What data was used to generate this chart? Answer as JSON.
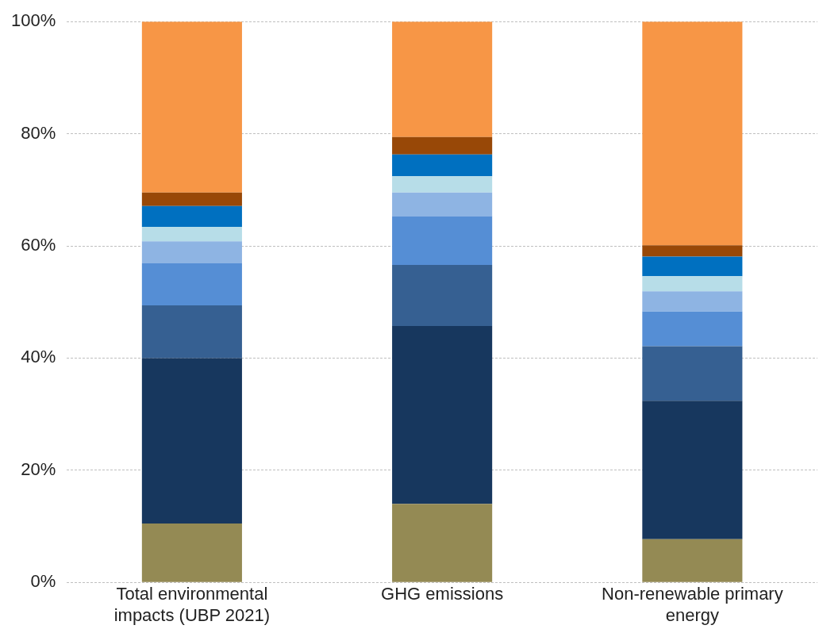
{
  "chart_data": {
    "type": "bar",
    "stacked": true,
    "categories": [
      "Total environmental impacts (UBP 2021)",
      "GHG emissions",
      "Non-renewable primary energy"
    ],
    "series": [
      {
        "color": "#948a54",
        "values": [
          10.5,
          14.0,
          7.7
        ]
      },
      {
        "color": "#17375e",
        "values": [
          29.5,
          31.7,
          24.7
        ]
      },
      {
        "color": "#366092",
        "values": [
          9.4,
          10.9,
          9.7
        ]
      },
      {
        "color": "#558ed5",
        "values": [
          7.5,
          8.7,
          6.2
        ]
      },
      {
        "color": "#8eb4e3",
        "values": [
          3.9,
          4.2,
          3.6
        ]
      },
      {
        "color": "#b7dde8",
        "values": [
          2.6,
          2.9,
          2.7
        ]
      },
      {
        "color": "#0070c0",
        "values": [
          3.7,
          3.9,
          3.5
        ]
      },
      {
        "color": "#984807",
        "values": [
          2.4,
          3.1,
          2.0
        ]
      },
      {
        "color": "#f79646",
        "values": [
          30.5,
          20.6,
          39.9
        ]
      }
    ],
    "ylim": [
      0,
      100
    ],
    "yticks": [
      {
        "value": 0,
        "label": "0%"
      },
      {
        "value": 20,
        "label": "20%"
      },
      {
        "value": 40,
        "label": "40%"
      },
      {
        "value": 60,
        "label": "60%"
      },
      {
        "value": 80,
        "label": "80%"
      },
      {
        "value": 100,
        "label": "100%"
      }
    ],
    "grid": "y",
    "legend": false
  }
}
